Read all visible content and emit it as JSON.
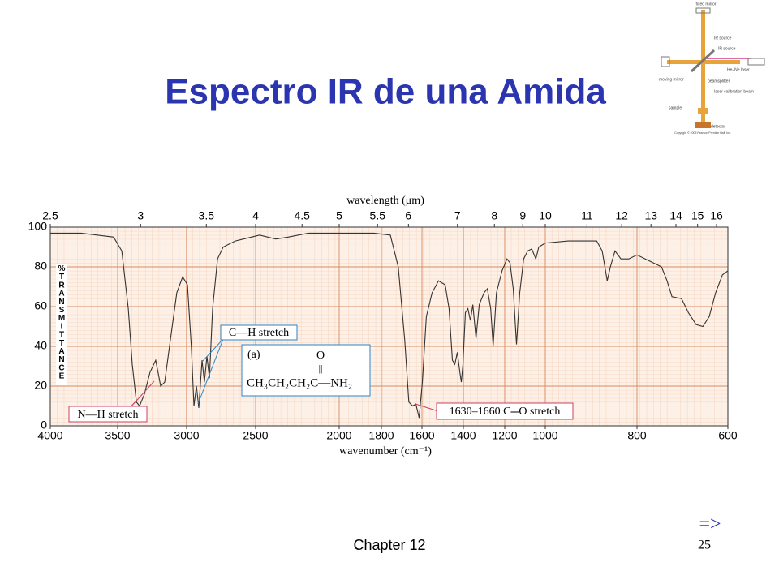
{
  "title": "Espectro IR de una Amida",
  "instrument": {
    "labels": [
      "fixed mirror",
      "IR source",
      "IR source",
      "He–Ne laser",
      "moving mirror",
      "beamsplitter",
      "laser calibration beam",
      "sample",
      "detector",
      "Copyright © 2005 Pearson Prentice Hall, Inc."
    ]
  },
  "chart_data": {
    "type": "line",
    "x_label": "wavenumber (cm⁻¹)",
    "x2_label": "wavelength (μm)",
    "y_label": "%TRANSMITTANCE",
    "xlim": [
      4000,
      600
    ],
    "ylim": [
      0,
      100
    ],
    "xticks": [
      4000,
      3500,
      3000,
      2500,
      2000,
      1800,
      1600,
      1400,
      1200,
      1000,
      800,
      600
    ],
    "x2ticks": [
      2.5,
      3,
      3.5,
      4,
      4.5,
      5,
      5.5,
      6,
      7,
      8,
      9,
      10,
      11,
      12,
      13,
      14,
      15,
      16
    ],
    "yticks": [
      0,
      20,
      40,
      60,
      80,
      100
    ],
    "grid": true,
    "series": [
      {
        "name": "spectrum",
        "color": "#333333",
        "x": [
          4000,
          3771,
          3530,
          3470,
          3423,
          3394,
          3364,
          3341,
          3306,
          3265,
          3224,
          3188,
          3159,
          3118,
          3071,
          3029,
          2994,
          2965,
          2947,
          2929,
          2912,
          2888,
          2871,
          2853,
          2835,
          2812,
          2776,
          2735,
          2647,
          2588,
          2476,
          2379,
          2306,
          2185,
          2000,
          1835,
          1756,
          1717,
          1685,
          1665,
          1646,
          1630,
          1614,
          1598,
          1579,
          1551,
          1520,
          1488,
          1469,
          1453,
          1441,
          1429,
          1417,
          1410,
          1402,
          1390,
          1378,
          1366,
          1354,
          1339,
          1323,
          1300,
          1284,
          1268,
          1256,
          1240,
          1213,
          1189,
          1174,
          1158,
          1142,
          1126,
          1107,
          1087,
          1067,
          1047,
          1032,
          1000,
          950,
          888,
          876,
          865,
          858,
          848,
          835,
          818,
          800,
          773,
          746,
          734,
          723,
          702,
          687,
          670,
          655,
          641,
          627,
          612,
          600
        ],
        "values": [
          97,
          97,
          95,
          88,
          59,
          31,
          12,
          10,
          16,
          27,
          33,
          20,
          22,
          43,
          67,
          75,
          71,
          39,
          10,
          20,
          9,
          33,
          22,
          35,
          24,
          59,
          84,
          90,
          93,
          94,
          96,
          94,
          95,
          97,
          97,
          97,
          96,
          80,
          43,
          12,
          10,
          11,
          4,
          22,
          55,
          67,
          73,
          71,
          59,
          33,
          31,
          37,
          27,
          22,
          31,
          57,
          59,
          53,
          61,
          44,
          61,
          67,
          69,
          59,
          40,
          67,
          78,
          84,
          82,
          69,
          41,
          67,
          84,
          88,
          89,
          84,
          90,
          92,
          93,
          93,
          88,
          73,
          80,
          88,
          84,
          84,
          86,
          83,
          80,
          73,
          65,
          64,
          57,
          51,
          50,
          55,
          67,
          76,
          78
        ]
      }
    ],
    "annotations": {
      "ch": "C—H stretch",
      "nh": "N—H stretch",
      "co": "1630–1660 C═O stretch",
      "structure": {
        "tag": "(a)",
        "o": "O",
        "bond": "||",
        "formula": "CH₃CH₂CH₂C—NH₂"
      }
    }
  },
  "footer": {
    "chapter": "Chapter 12",
    "page": "25",
    "arrow": "=>"
  }
}
